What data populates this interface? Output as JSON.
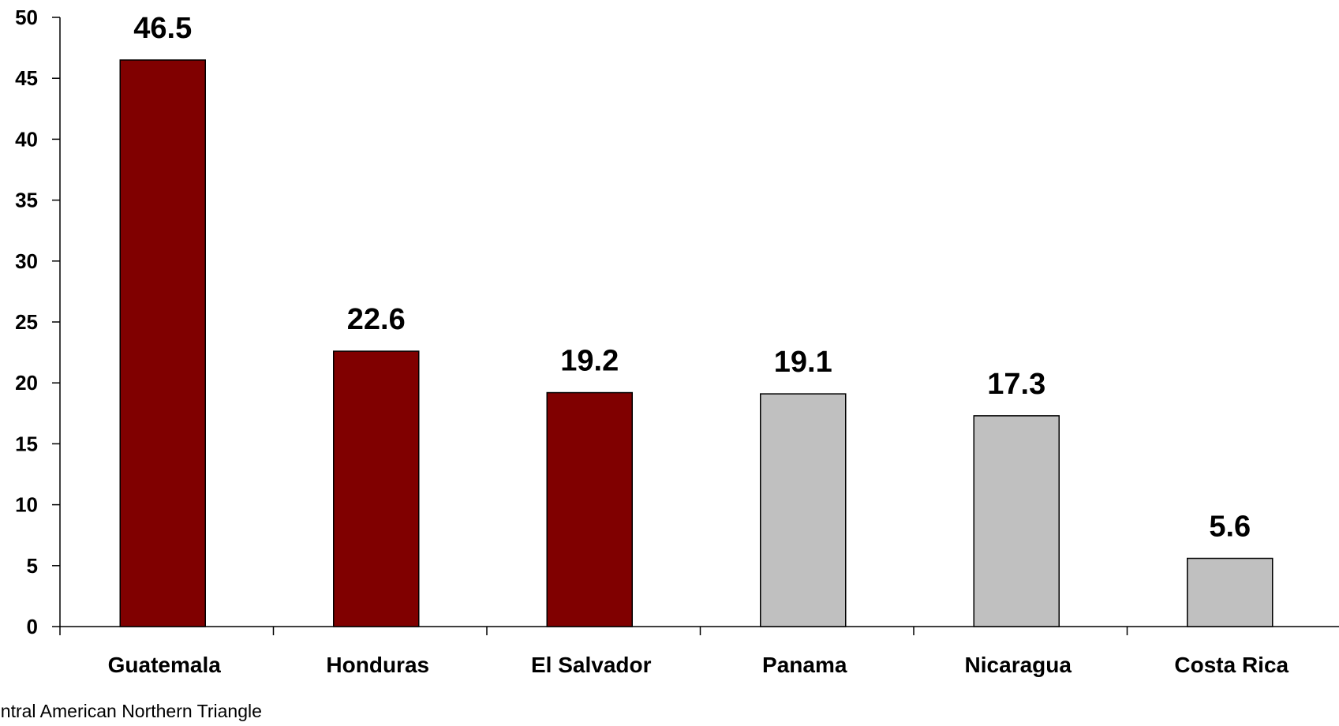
{
  "chart_data": {
    "type": "bar",
    "categories": [
      "Guatemala",
      "Honduras",
      "El Salvador",
      "Panama",
      "Nicaragua",
      "Costa Rica"
    ],
    "values": [
      46.5,
      22.6,
      19.2,
      19.1,
      17.3,
      5.6
    ],
    "data_labels": [
      "46.5",
      "22.6",
      "19.2",
      "19.1",
      "17.3",
      "5.6"
    ],
    "ylim": [
      0,
      50
    ],
    "yticks": [
      0,
      5,
      10,
      15,
      20,
      25,
      30,
      35,
      40,
      45,
      50
    ],
    "grid": false,
    "legend": "none",
    "bar_colors": [
      "#800000",
      "#800000",
      "#800000",
      "#c0c0c0",
      "#c0c0c0",
      "#c0c0c0"
    ],
    "title": "",
    "xlabel": "",
    "ylabel": ""
  },
  "footnote": "entral American Northern Triangle"
}
